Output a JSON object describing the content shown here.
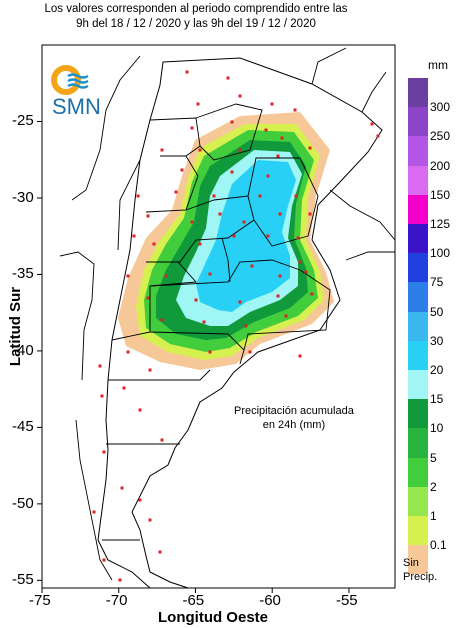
{
  "title": [
    "Los valores corresponden al periodo comprendido entre las",
    "9h del 18 / 12 / 2020  y las 9h del 19 / 12 / 2020"
  ],
  "logo": {
    "text": "SMN"
  },
  "annotation": [
    "Precipitación acumulada",
    "en 24h (mm)"
  ],
  "axes": {
    "xlabel": "Longitud Oeste",
    "ylabel": "Latitud Sur",
    "x_ticks": [
      "-75",
      "-70",
      "-65",
      "-60",
      "-55"
    ],
    "y_ticks": [
      "-25",
      "-30",
      "-35",
      "-40",
      "-45",
      "-50",
      "-55"
    ],
    "x_range": [
      -75,
      -52
    ],
    "y_range": [
      -55.5,
      -20
    ]
  },
  "legend": {
    "unit": "mm",
    "labels": [
      "300",
      "250",
      "200",
      "150",
      "125",
      "100",
      "75",
      "50",
      "30",
      "20",
      "15",
      "10",
      "5",
      "2",
      "1",
      "0.1"
    ],
    "colors": [
      "#6b3fa0",
      "#8e44c8",
      "#b455e6",
      "#d86bf0",
      "#f000c8",
      "#3c14c8",
      "#2040e0",
      "#2c7fe8",
      "#3cb8f0",
      "#28d0f5",
      "#a0f5f5",
      "#119a3c",
      "#26b43c",
      "#41cd3c",
      "#96e650",
      "#d6f050",
      "#f6c898"
    ],
    "no_rain_label": [
      "Sin",
      "Precip."
    ]
  },
  "colors": {
    "dry": "#f6c898",
    "light": "#d6f050",
    "green": "#41cd3c",
    "darkgreen": "#119a3c",
    "cyan": "#a0f5f5",
    "blue": "#28d0f5",
    "stations": "#dd2222"
  }
}
